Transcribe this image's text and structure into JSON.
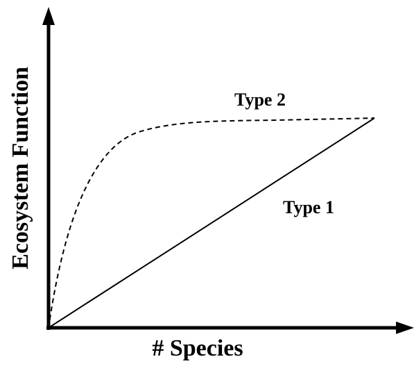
{
  "diagram": {
    "y_axis_label": "Ecosystem Function",
    "x_axis_label": "# Species",
    "curves": [
      {
        "label": "Type 2"
      },
      {
        "label": "Type 1"
      }
    ]
  }
}
